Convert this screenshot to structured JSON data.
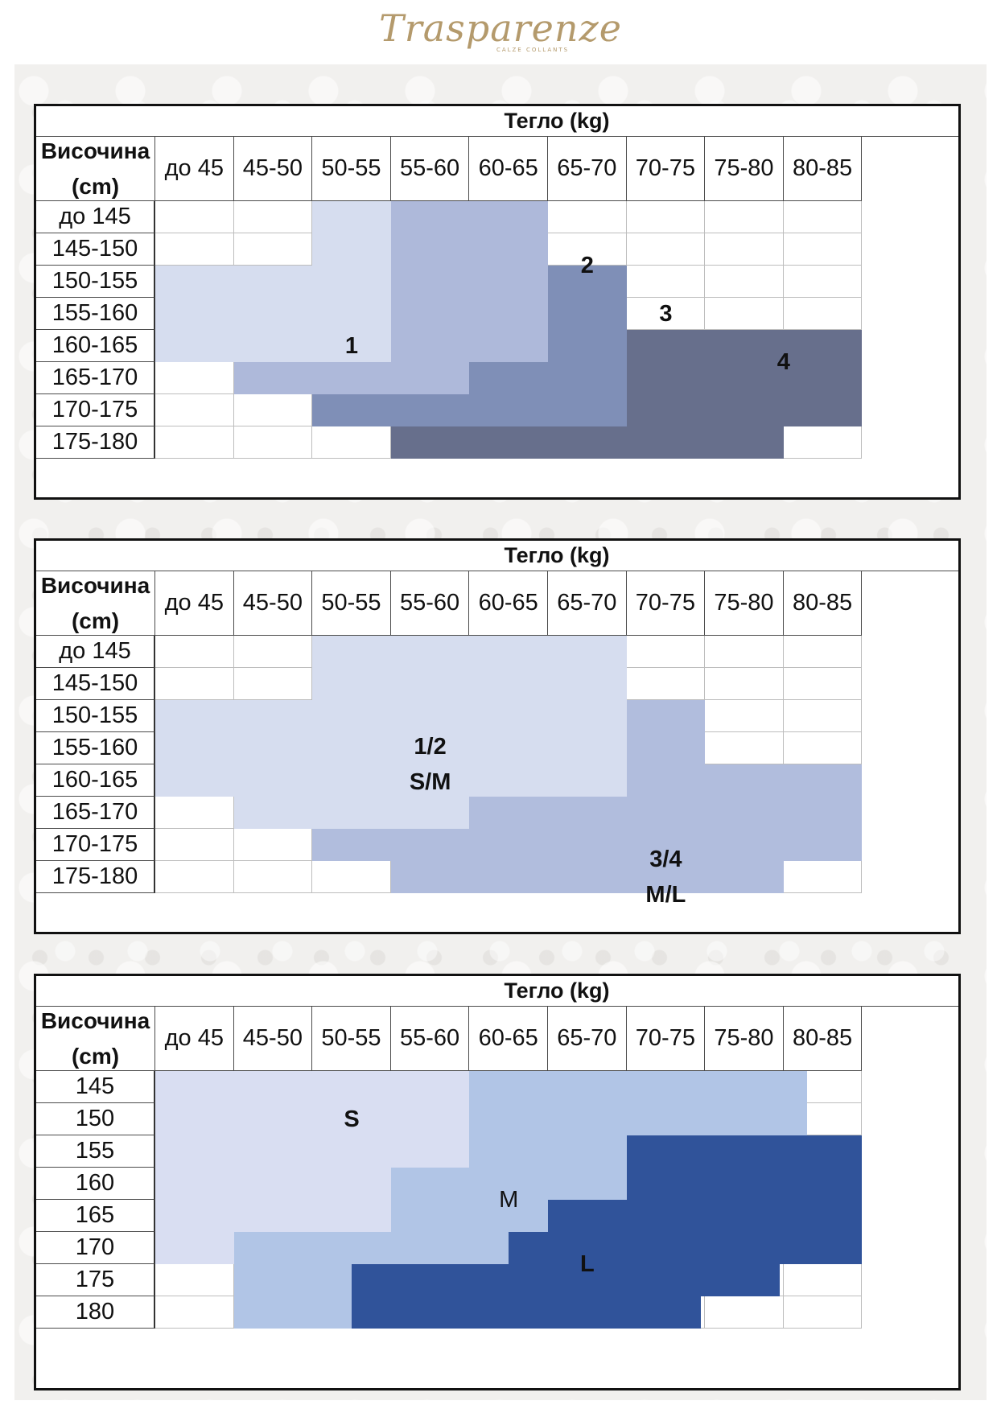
{
  "brand": {
    "name": "Trasparenze",
    "tagline": "CALZE COLLANTS",
    "color": "#b49a6c"
  },
  "tables": [
    {
      "title": "Тегло (kg)",
      "row_header": [
        "Височина",
        "(cm)"
      ],
      "columns": [
        "до 45",
        "45-50",
        "50-55",
        "55-60",
        "60-65",
        "65-70",
        "70-75",
        "75-80",
        "80-85"
      ],
      "rows": [
        "до 145",
        "145-150",
        "150-155",
        "155-160",
        "160-165",
        "165-170",
        "170-175",
        "175-180"
      ],
      "sizes": [
        {
          "label": [
            "1"
          ],
          "color": "#d6ddef",
          "cells": [
            [
              0,
              2,
              2
            ],
            [
              1,
              2,
              2
            ],
            [
              2,
              0,
              2
            ],
            [
              3,
              0,
              2
            ],
            [
              4,
              0,
              2
            ]
          ]
        },
        {
          "label": [
            "2"
          ],
          "color": "#aeb9da",
          "cells": [
            [
              0,
              3,
              4
            ],
            [
              1,
              3,
              4
            ],
            [
              2,
              3,
              4
            ],
            [
              3,
              3,
              4
            ],
            [
              4,
              3,
              4
            ],
            [
              5,
              1,
              3
            ]
          ]
        },
        {
          "label": [
            "3"
          ],
          "color": "#7f8fb7",
          "cells": [
            [
              2,
              5,
              5
            ],
            [
              3,
              5,
              5
            ],
            [
              4,
              5,
              5
            ],
            [
              5,
              4,
              5
            ],
            [
              6,
              2,
              5
            ]
          ]
        },
        {
          "label": [
            "4"
          ],
          "color": "#676f8c",
          "cells": [
            [
              4,
              6,
              8
            ],
            [
              5,
              6,
              8
            ],
            [
              6,
              6,
              8
            ],
            [
              7,
              3,
              7
            ]
          ]
        }
      ],
      "label_pos": [
        [
          4.5,
          2.5
        ],
        [
          2.0,
          5.5
        ],
        [
          3.5,
          6.5
        ],
        [
          5.0,
          8.0
        ]
      ],
      "plain_labels": false
    },
    {
      "title": "Тегло (kg)",
      "row_header": [
        "Височина",
        "(cm)"
      ],
      "columns": [
        "до 45",
        "45-50",
        "50-55",
        "55-60",
        "60-65",
        "65-70",
        "70-75",
        "75-80",
        "80-85"
      ],
      "rows": [
        "до 145",
        "145-150",
        "150-155",
        "155-160",
        "160-165",
        "165-170",
        "170-175",
        "175-180"
      ],
      "sizes": [
        {
          "label": [
            "1/2",
            "S/M"
          ],
          "color": "#d6ddef",
          "cells": [
            [
              0,
              2,
              5
            ],
            [
              1,
              2,
              5
            ],
            [
              2,
              0,
              5
            ],
            [
              3,
              0,
              5
            ],
            [
              4,
              0,
              5
            ],
            [
              5,
              1,
              3
            ]
          ]
        },
        {
          "label": [
            "3/4",
            "M/L"
          ],
          "color": "#b1bddd",
          "cells": [
            [
              2,
              6,
              6
            ],
            [
              3,
              6,
              6
            ],
            [
              4,
              6,
              8
            ],
            [
              5,
              4,
              8
            ],
            [
              6,
              2,
              8
            ],
            [
              7,
              3,
              7
            ]
          ]
        }
      ],
      "label_pos": [
        [
          4.0,
          3.5
        ],
        [
          7.5,
          6.5
        ]
      ],
      "plain_labels": false
    },
    {
      "title": "Тегло (kg)",
      "row_header": [
        "Височина",
        "(cm)"
      ],
      "columns": [
        "до 45",
        "45-50",
        "50-55",
        "55-60",
        "60-65",
        "65-70",
        "70-75",
        "75-80",
        "80-85"
      ],
      "rows": [
        "145",
        "150",
        "155",
        "160",
        "165",
        "170",
        "175",
        "180"
      ],
      "sizes": [
        {
          "label": [
            "S"
          ],
          "color": "#d9def2",
          "cells": [
            [
              0,
              0,
              3.95
            ],
            [
              1,
              0,
              3.95
            ],
            [
              2,
              0,
              3.95
            ],
            [
              3,
              0,
              2.95
            ],
            [
              4,
              0,
              2.95
            ],
            [
              5,
              0,
              0.95
            ]
          ]
        },
        {
          "label": [
            "M"
          ],
          "color": "#b1c5e6",
          "cells": [
            [
              0,
              4,
              7.3
            ],
            [
              1,
              4,
              7.3
            ],
            [
              2,
              4,
              5.95
            ],
            [
              3,
              3,
              5.95
            ],
            [
              4,
              3,
              4.95
            ],
            [
              5,
              1,
              4.45
            ],
            [
              6,
              1,
              2.45
            ],
            [
              7,
              1,
              2.45
            ]
          ]
        },
        {
          "label": [
            "L"
          ],
          "color": "#30539a",
          "cells": [
            [
              2,
              6,
              8
            ],
            [
              3,
              6,
              8
            ],
            [
              4,
              5,
              8
            ],
            [
              5,
              4.5,
              8
            ],
            [
              6,
              2.5,
              6.95
            ],
            [
              7,
              2.5,
              5.95
            ]
          ]
        }
      ],
      "label_pos": [
        [
          1.5,
          2.5
        ],
        [
          4.0,
          4.5
        ],
        [
          6.0,
          5.5
        ]
      ],
      "plain_labels": true
    }
  ]
}
